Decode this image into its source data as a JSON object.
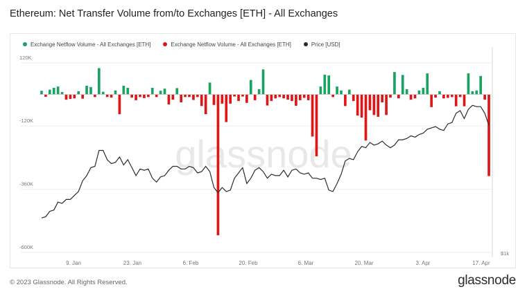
{
  "title": "Ethereum: Net Transfer Volume from/to Exchanges [ETH] - All Exchanges",
  "watermark": "glassnode",
  "footer": {
    "copyright": "© 2023 Glassnode. All Rights Reserved.",
    "logo": "glassnode"
  },
  "colors": {
    "inflow": "#1aa260",
    "outflow": "#dd1717",
    "price": "#2b2b2b"
  },
  "chart_data": {
    "type": "bar",
    "x_ticks": [
      "9. Jan",
      "23. Jan",
      "6. Feb",
      "20. Feb",
      "6. Mar",
      "20. Mar",
      "3. Apr",
      "17. Apr"
    ],
    "y_ticks": [
      "120K",
      "-120K",
      "-360K",
      "-600K"
    ],
    "y_tick_values": [
      120000,
      -120000,
      -360000,
      -600000
    ],
    "ylim": [
      -600000,
      180000
    ],
    "right_axis_label": "$1k",
    "legend": [
      {
        "name": "Exchange Netflow Volume - All Exchanges [ETH]",
        "color": "#1aa260"
      },
      {
        "name": "Exchange Netflow Volume - All Exchanges [ETH]",
        "color": "#dd1717"
      },
      {
        "name": "Price [USD]",
        "color": "#2b2b2b"
      }
    ],
    "series": [
      {
        "name": "Exchange Netflow Volume - All Exchanges [ETH]",
        "kind": "netflow_bars",
        "values": [
          14000,
          -9000,
          18000,
          25000,
          30000,
          9000,
          -20000,
          -17000,
          -15000,
          12000,
          -16000,
          33000,
          28000,
          -10000,
          100000,
          10000,
          -10000,
          -12000,
          15000,
          -75000,
          33000,
          25000,
          -12000,
          -22000,
          -10000,
          -14000,
          -10000,
          25000,
          -10000,
          14000,
          22000,
          -38000,
          -20000,
          24000,
          -30000,
          -10000,
          -10000,
          -21000,
          -10000,
          -44000,
          -75000,
          45000,
          -40000,
          -535000,
          -35000,
          -105000,
          -35000,
          -8000,
          -25000,
          -8000,
          -32000,
          55000,
          -22000,
          20000,
          95000,
          -42000,
          -25000,
          -15000,
          -10000,
          -15000,
          -20000,
          -25000,
          -43000,
          -22000,
          -13000,
          -22000,
          -160000,
          -235000,
          30000,
          75000,
          72000,
          -10000,
          30000,
          15000,
          -44000,
          18000,
          -25000,
          -80000,
          -88000,
          -175000,
          -60000,
          -78000,
          -85000,
          -30000,
          -78000,
          -12000,
          85000,
          -15000,
          74000,
          20000,
          -20000,
          -15000,
          15000,
          25000,
          80000,
          -48000,
          -12000,
          12000,
          -15000,
          -13000,
          -10000,
          -45000,
          -10000,
          -45000,
          80000,
          12000,
          15000,
          70000,
          -20000,
          -310000
        ]
      },
      {
        "name": "Price [USD]",
        "kind": "line",
        "values": [
          1260,
          1270,
          1310,
          1320,
          1380,
          1370,
          1400,
          1400,
          1430,
          1460,
          1540,
          1580,
          1640,
          1650,
          1770,
          1770,
          1700,
          1670,
          1680,
          1720,
          1660,
          1700,
          1640,
          1580,
          1630,
          1620,
          1630,
          1560,
          1530,
          1570,
          1580,
          1620,
          1650,
          1650,
          1630,
          1630,
          1650,
          1640,
          1600,
          1610,
          1650,
          1610,
          1490,
          1450,
          1490,
          1460,
          1470,
          1560,
          1600,
          1640,
          1520,
          1560,
          1620,
          1640,
          1610,
          1560,
          1590,
          1580,
          1580,
          1620,
          1570,
          1620,
          1630,
          1600,
          1590,
          1600,
          1560,
          1560,
          1550,
          1560,
          1470,
          1460,
          1520,
          1590,
          1690,
          1710,
          1700,
          1760,
          1800,
          1790,
          1830,
          1810,
          1820,
          1840,
          1810,
          1790,
          1810,
          1850,
          1850,
          1860,
          1880,
          1870,
          1890,
          1900,
          1930,
          1940,
          1950,
          1930,
          1920,
          1970,
          1980,
          2050,
          2070,
          2010,
          2080,
          2110,
          2100,
          2100,
          2050,
          1960
        ]
      }
    ]
  }
}
